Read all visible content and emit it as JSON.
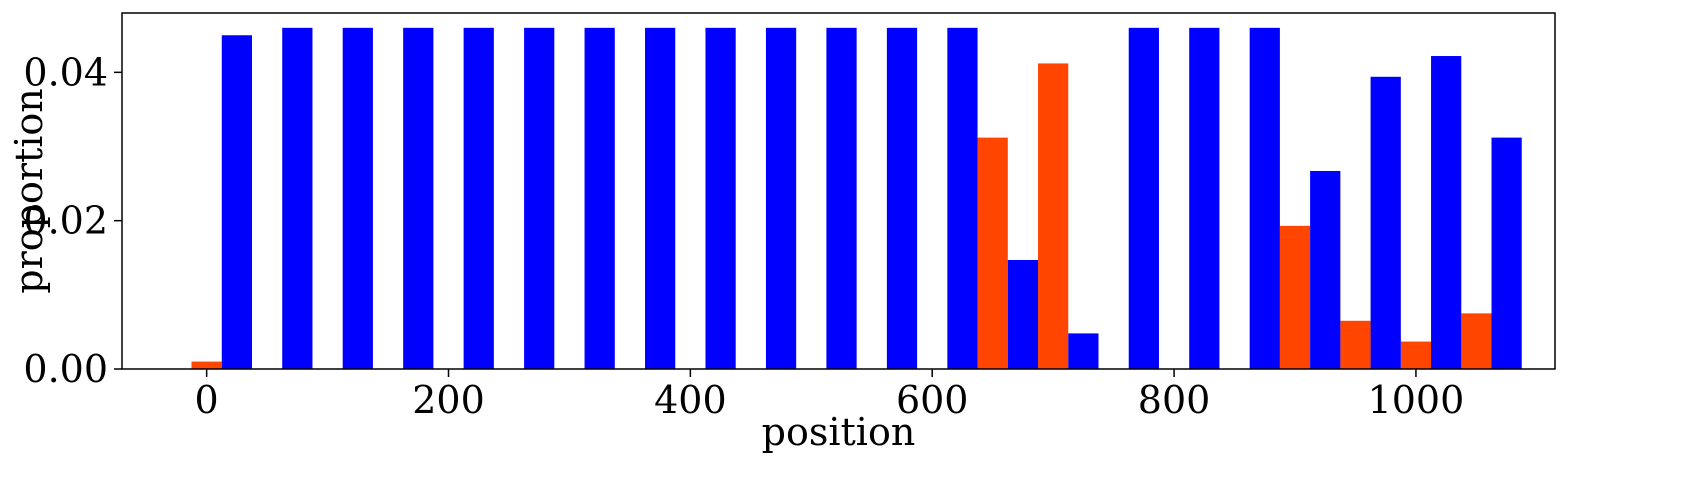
{
  "chart_data": {
    "type": "bar",
    "title": "",
    "xlabel": "position",
    "ylabel": "proportion",
    "xlim": [
      -70,
      1115
    ],
    "ylim": [
      0,
      0.048
    ],
    "xticks": [
      0,
      200,
      400,
      600,
      800,
      1000
    ],
    "xtick_labels": [
      "0",
      "200",
      "400",
      "600",
      "800",
      "1000"
    ],
    "yticks": [
      0,
      0.02,
      0.04
    ],
    "ytick_labels": [
      "0.00",
      "0.02",
      "0.04"
    ],
    "bar_width": 25,
    "grid": false,
    "series": [
      {
        "name": "orange",
        "color": "#ff4500",
        "x": [
          0,
          650,
          700,
          900,
          950,
          1000,
          1050
        ],
        "values": [
          0.001,
          0.0312,
          0.0412,
          0.0193,
          0.0065,
          0.0037,
          0.0075
        ]
      },
      {
        "name": "blue",
        "color": "#0000ff",
        "x": [
          25,
          75,
          125,
          175,
          225,
          275,
          325,
          375,
          425,
          475,
          525,
          575,
          625,
          675,
          725,
          775,
          825,
          875,
          925,
          975,
          1025,
          1075
        ],
        "values": [
          0.045,
          0.046,
          0.046,
          0.046,
          0.046,
          0.046,
          0.046,
          0.046,
          0.046,
          0.046,
          0.046,
          0.046,
          0.046,
          0.0147,
          0.0048,
          0.046,
          0.046,
          0.046,
          0.0267,
          0.0394,
          0.0422,
          0.0312
        ]
      }
    ]
  }
}
